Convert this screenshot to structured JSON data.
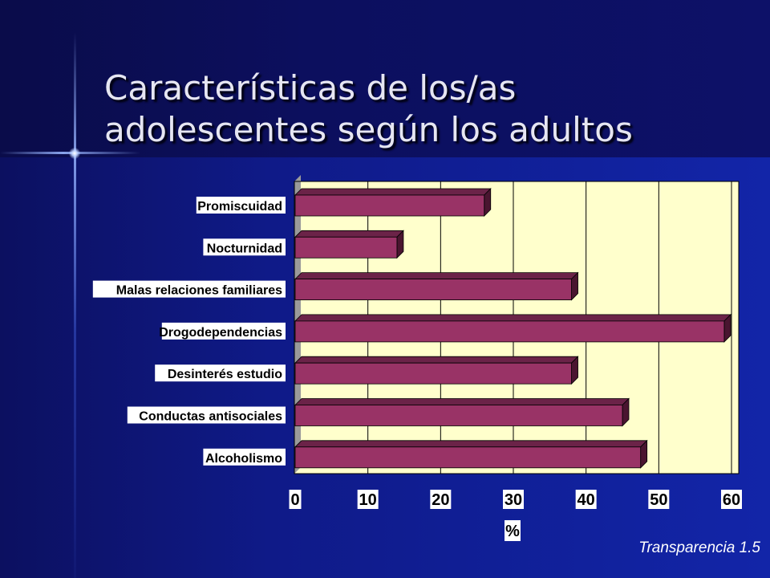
{
  "slide": {
    "title_lines": [
      "Características de los/as",
      "adolescentes según los adultos"
    ],
    "footer": "Transparencia 1.5"
  },
  "colors": {
    "plot_background": "#ffffcc",
    "bar_front": "#993366",
    "bar_top": "#6b2348",
    "bar_side": "#4a1530",
    "label_box": "#ffffff",
    "label_text": "#000000"
  },
  "chart_data": {
    "type": "bar",
    "orientation": "horizontal",
    "categories": [
      "Promiscuidad",
      "Nocturnidad",
      "Malas relaciones familiares",
      "Drogodependencias",
      "Desinterés estudio",
      "Conductas antisociales",
      "Alcoholismo"
    ],
    "values": [
      26,
      14,
      38,
      59,
      38,
      45,
      47.5
    ],
    "xlabel": "%",
    "xlim": [
      0,
      60
    ],
    "xticks": [
      "0",
      "10",
      "20",
      "30",
      "40",
      "50",
      "60"
    ],
    "grid": "vertical",
    "legend": "none"
  }
}
